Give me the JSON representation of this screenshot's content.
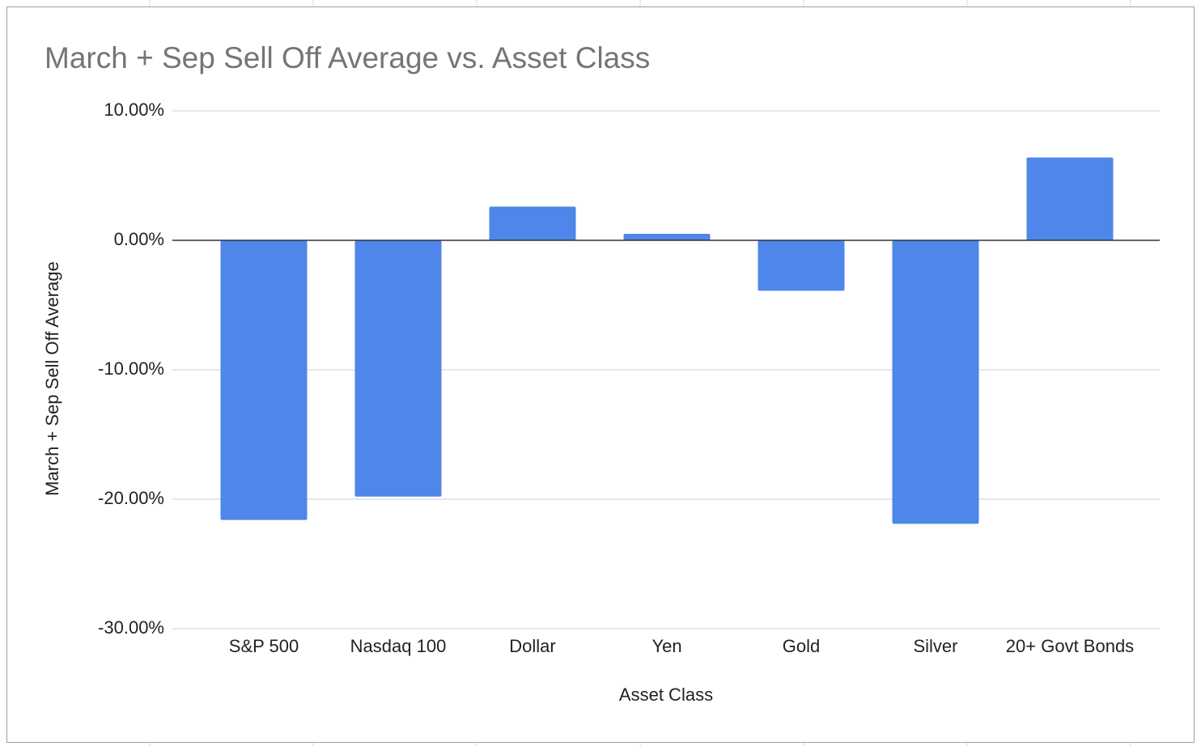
{
  "chart_data": {
    "type": "bar",
    "title": "March + Sep Sell Off Average vs. Asset Class",
    "x_label": "Asset Class",
    "y_label": "March + Sep Sell Off Average",
    "categories": [
      "S&P 500",
      "Nasdaq 100",
      "Dollar",
      "Yen",
      "Gold",
      "Silver",
      "20+ Govt Bonds"
    ],
    "values": [
      -21.6,
      -19.8,
      2.6,
      0.5,
      -3.9,
      -21.9,
      6.4
    ],
    "color": "#4e86e9",
    "ylim": [
      -30,
      10
    ],
    "yticks": [
      {
        "value": -30,
        "label": "-30.00%"
      },
      {
        "value": -20,
        "label": "-20.00%"
      },
      {
        "value": -10,
        "label": "-10.00%"
      },
      {
        "value": 0,
        "label": "0.00%"
      },
      {
        "value": 10,
        "label": "10.00%"
      }
    ],
    "grid": true
  }
}
